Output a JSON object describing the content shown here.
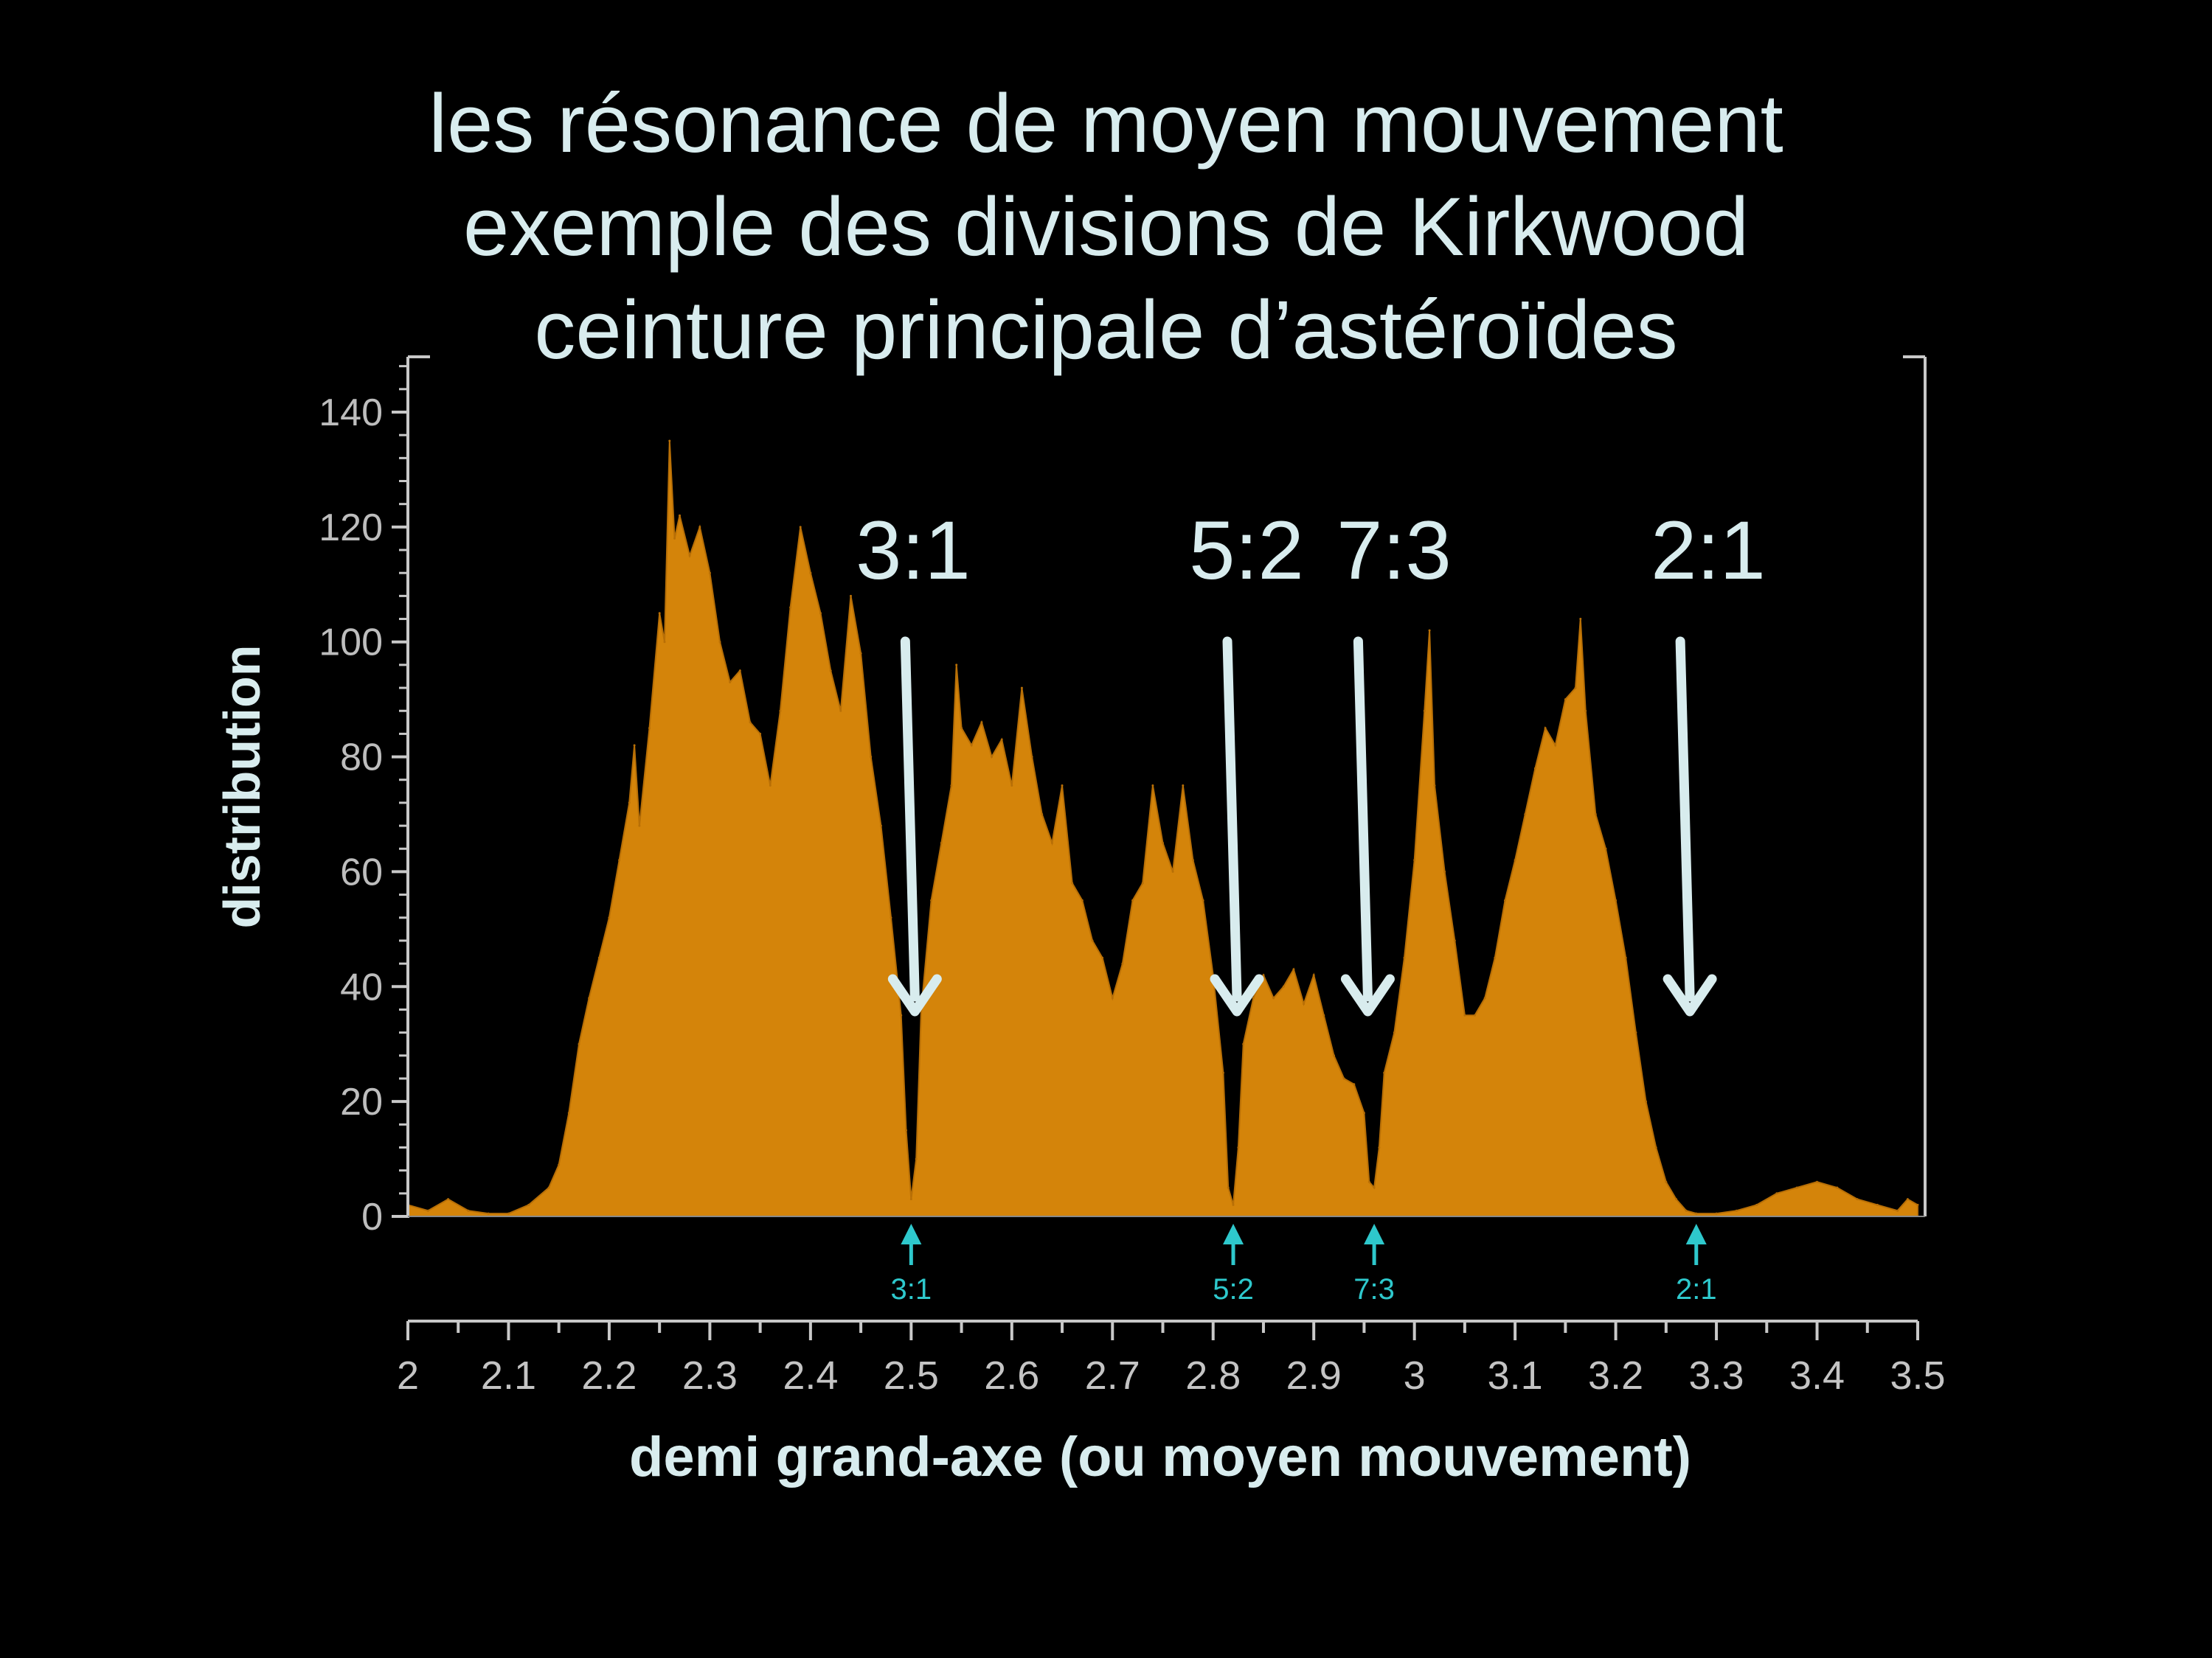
{
  "slide": {
    "title_lines": [
      "les résonance de moyen mouvement",
      "exemple des divisions de Kirkwood",
      "ceinture principale d’astéroïdes"
    ]
  },
  "colors": {
    "background": "#000000",
    "bars": "#d4840a",
    "text": "#d8ecee",
    "axis": "#c8c8c8",
    "marker": "#2ec8cc"
  },
  "chart_data": {
    "type": "area",
    "xlabel": "demi grand-axe (ou moyen mouvement)",
    "ylabel": "distribution",
    "xlim": [
      2.0,
      3.5
    ],
    "ylim": [
      0,
      150
    ],
    "x_ticks": [
      "2",
      "2.1",
      "2.2",
      "2.3",
      "2.4",
      "2.5",
      "2.6",
      "2.7",
      "2.8",
      "2.9",
      "3",
      "3.1",
      "3.2",
      "3.3",
      "3.4",
      "3.5"
    ],
    "y_ticks": [
      "0",
      "20",
      "40",
      "60",
      "80",
      "100",
      "120",
      "140"
    ],
    "grid": false,
    "points": [
      [
        2.0,
        2
      ],
      [
        2.02,
        1
      ],
      [
        2.04,
        3
      ],
      [
        2.06,
        1
      ],
      [
        2.08,
        0.5
      ],
      [
        2.1,
        0.5
      ],
      [
        2.12,
        2
      ],
      [
        2.14,
        5
      ],
      [
        2.15,
        9
      ],
      [
        2.16,
        18
      ],
      [
        2.17,
        30
      ],
      [
        2.18,
        38
      ],
      [
        2.19,
        45
      ],
      [
        2.2,
        52
      ],
      [
        2.21,
        62
      ],
      [
        2.22,
        72
      ],
      [
        2.225,
        82
      ],
      [
        2.23,
        68
      ],
      [
        2.24,
        85
      ],
      [
        2.25,
        105
      ],
      [
        2.255,
        100
      ],
      [
        2.26,
        135
      ],
      [
        2.265,
        118
      ],
      [
        2.27,
        122
      ],
      [
        2.28,
        115
      ],
      [
        2.29,
        120
      ],
      [
        2.3,
        112
      ],
      [
        2.31,
        100
      ],
      [
        2.32,
        93
      ],
      [
        2.33,
        95
      ],
      [
        2.34,
        86
      ],
      [
        2.35,
        84
      ],
      [
        2.36,
        75
      ],
      [
        2.37,
        88
      ],
      [
        2.38,
        106
      ],
      [
        2.39,
        120
      ],
      [
        2.4,
        112
      ],
      [
        2.41,
        105
      ],
      [
        2.42,
        95
      ],
      [
        2.43,
        88
      ],
      [
        2.44,
        108
      ],
      [
        2.45,
        98
      ],
      [
        2.46,
        80
      ],
      [
        2.47,
        68
      ],
      [
        2.48,
        52
      ],
      [
        2.49,
        35
      ],
      [
        2.495,
        15
      ],
      [
        2.5,
        3
      ],
      [
        2.505,
        10
      ],
      [
        2.51,
        36
      ],
      [
        2.52,
        55
      ],
      [
        2.53,
        65
      ],
      [
        2.54,
        75
      ],
      [
        2.545,
        96
      ],
      [
        2.55,
        85
      ],
      [
        2.56,
        82
      ],
      [
        2.57,
        86
      ],
      [
        2.58,
        80
      ],
      [
        2.59,
        83
      ],
      [
        2.6,
        75
      ],
      [
        2.61,
        92
      ],
      [
        2.62,
        80
      ],
      [
        2.63,
        70
      ],
      [
        2.64,
        65
      ],
      [
        2.65,
        75
      ],
      [
        2.66,
        58
      ],
      [
        2.67,
        55
      ],
      [
        2.68,
        48
      ],
      [
        2.69,
        45
      ],
      [
        2.7,
        38
      ],
      [
        2.71,
        44
      ],
      [
        2.72,
        55
      ],
      [
        2.73,
        58
      ],
      [
        2.74,
        75
      ],
      [
        2.75,
        65
      ],
      [
        2.76,
        60
      ],
      [
        2.77,
        75
      ],
      [
        2.78,
        62
      ],
      [
        2.79,
        55
      ],
      [
        2.8,
        42
      ],
      [
        2.81,
        25
      ],
      [
        2.815,
        5
      ],
      [
        2.82,
        2
      ],
      [
        2.825,
        12
      ],
      [
        2.83,
        30
      ],
      [
        2.84,
        38
      ],
      [
        2.85,
        42
      ],
      [
        2.86,
        38
      ],
      [
        2.87,
        40
      ],
      [
        2.88,
        43
      ],
      [
        2.89,
        37
      ],
      [
        2.9,
        42
      ],
      [
        2.91,
        35
      ],
      [
        2.92,
        28
      ],
      [
        2.93,
        24
      ],
      [
        2.94,
        23
      ],
      [
        2.95,
        18
      ],
      [
        2.955,
        6
      ],
      [
        2.96,
        5
      ],
      [
        2.965,
        12
      ],
      [
        2.97,
        25
      ],
      [
        2.98,
        32
      ],
      [
        2.99,
        45
      ],
      [
        3.0,
        62
      ],
      [
        3.01,
        88
      ],
      [
        3.015,
        102
      ],
      [
        3.02,
        75
      ],
      [
        3.03,
        60
      ],
      [
        3.04,
        48
      ],
      [
        3.05,
        35
      ],
      [
        3.06,
        35
      ],
      [
        3.07,
        38
      ],
      [
        3.08,
        45
      ],
      [
        3.09,
        55
      ],
      [
        3.1,
        62
      ],
      [
        3.11,
        70
      ],
      [
        3.12,
        78
      ],
      [
        3.13,
        85
      ],
      [
        3.14,
        82
      ],
      [
        3.15,
        90
      ],
      [
        3.16,
        92
      ],
      [
        3.165,
        104
      ],
      [
        3.17,
        88
      ],
      [
        3.18,
        70
      ],
      [
        3.19,
        64
      ],
      [
        3.2,
        55
      ],
      [
        3.21,
        45
      ],
      [
        3.22,
        32
      ],
      [
        3.23,
        20
      ],
      [
        3.24,
        12
      ],
      [
        3.25,
        6
      ],
      [
        3.26,
        3
      ],
      [
        3.27,
        1
      ],
      [
        3.28,
        0.5
      ],
      [
        3.3,
        0.5
      ],
      [
        3.32,
        1
      ],
      [
        3.34,
        2
      ],
      [
        3.36,
        4
      ],
      [
        3.38,
        5
      ],
      [
        3.4,
        6
      ],
      [
        3.42,
        5
      ],
      [
        3.44,
        3
      ],
      [
        3.46,
        2
      ],
      [
        3.48,
        1
      ],
      [
        3.49,
        3
      ],
      [
        3.5,
        2
      ]
    ],
    "annotations": [
      {
        "label": "3:1",
        "x": 2.5
      },
      {
        "label": "5:2",
        "x": 2.82
      },
      {
        "label": "7:3",
        "x": 2.95
      },
      {
        "label": "2:1",
        "x": 3.27
      }
    ],
    "markers": [
      {
        "label": "3:1",
        "x": 2.5
      },
      {
        "label": "5:2",
        "x": 2.82
      },
      {
        "label": "7:3",
        "x": 2.96
      },
      {
        "label": "2:1",
        "x": 3.28
      }
    ]
  }
}
